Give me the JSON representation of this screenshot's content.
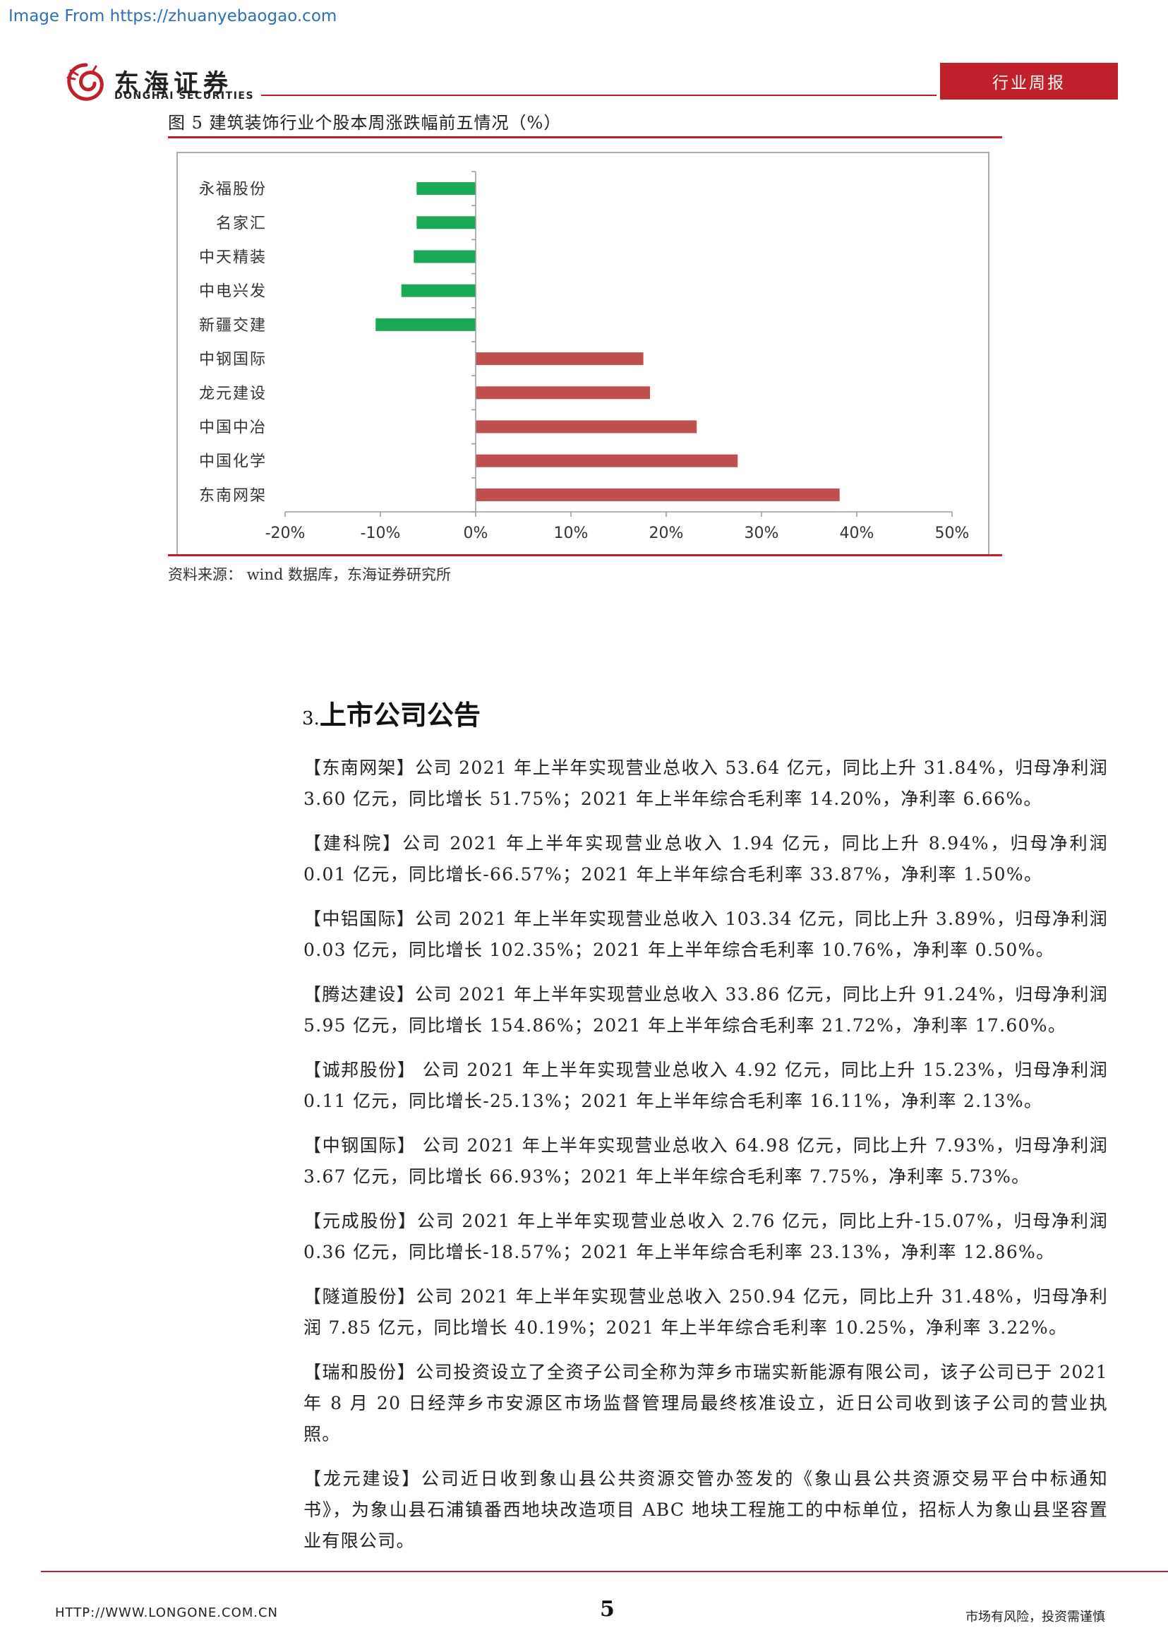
{
  "watermark": "Image From https://zhuanyebaogao.com",
  "header": {
    "logo_cn": "东海证券",
    "logo_en": "DONGHAI SECURITIES",
    "badge": "行业周报",
    "brand_color": "#c0202a"
  },
  "figure": {
    "caption": "图 5   建筑装饰行业个股本周涨跌幅前五情况（%）",
    "source": "资料来源：  wind 数据库，东海证券研究所"
  },
  "chart_data": {
    "type": "bar",
    "orientation": "horizontal",
    "categories": [
      "永福股份",
      "名家汇",
      "中天精装",
      "中电兴发",
      "新疆交建",
      "中钢国际",
      "龙元建设",
      "中国中冶",
      "中国化学",
      "东南网架"
    ],
    "values": [
      -6.2,
      -6.2,
      -6.5,
      -7.8,
      -10.5,
      17.6,
      18.3,
      23.2,
      27.5,
      38.2
    ],
    "xlim": [
      -20,
      50
    ],
    "ticks": [
      "-20%",
      "-10%",
      "0%",
      "10%",
      "20%",
      "30%",
      "40%",
      "50%"
    ],
    "tick_values": [
      -20,
      -10,
      0,
      10,
      20,
      30,
      40,
      50
    ],
    "negative_color": "#1aaa55",
    "positive_color": "#c0504d",
    "title": "",
    "xlabel": "",
    "ylabel": "",
    "grid": false
  },
  "section": {
    "number": "3.",
    "title": "上市公司公告"
  },
  "announcements": [
    "【东南网架】公司 2021 年上半年实现营业总收入 53.64 亿元，同比上升 31.84%，归母净利润 3.60 亿元，同比增长 51.75%；2021 年上半年综合毛利率 14.20%，净利率 6.66%。",
    "【建科院】公司 2021 年上半年实现营业总收入 1.94 亿元，同比上升 8.94%，归母净利润 0.01 亿元，同比增长-66.57%；2021 年上半年综合毛利率 33.87%，净利率 1.50%。",
    "【中铝国际】公司 2021 年上半年实现营业总收入 103.34 亿元，同比上升 3.89%，归母净利润 0.03 亿元，同比增长 102.35%；2021 年上半年综合毛利率 10.76%，净利率 0.50%。",
    "【腾达建设】公司 2021 年上半年实现营业总收入 33.86 亿元，同比上升 91.24%，归母净利润 5.95 亿元，同比增长 154.86%；2021 年上半年综合毛利率 21.72%，净利率 17.60%。",
    "【诚邦股份】 公司 2021 年上半年实现营业总收入 4.92 亿元，同比上升 15.23%，归母净利润 0.11 亿元，同比增长-25.13%；2021 年上半年综合毛利率 16.11%，净利率 2.13%。",
    "【中钢国际】  公司 2021 年上半年实现营业总收入 64.98 亿元，同比上升 7.93%，归母净利润 3.67 亿元，同比增长 66.93%；2021 年上半年综合毛利率 7.75%，净利率 5.73%。",
    "【元成股份】公司 2021 年上半年实现营业总收入 2.76 亿元，同比上升-15.07%，归母净利润 0.36 亿元，同比增长-18.57%；2021 年上半年综合毛利率 23.13%，净利率 12.86%。",
    "【隧道股份】公司 2021 年上半年实现营业总收入 250.94 亿元，同比上升 31.48%，归母净利润 7.85 亿元，同比增长 40.19%；2021 年上半年综合毛利率 10.25%，净利率 3.22%。",
    "【瑞和股份】公司投资设立了全资子公司全称为萍乡市瑞实新能源有限公司，该子公司已于 2021 年 8 月 20 日经萍乡市安源区市场监督管理局最终核准设立，近日公司收到该子公司的营业执照。",
    "【龙元建设】公司近日收到象山县公共资源交管办签发的《象山县公共资源交易平台中标通知书》，为象山县石浦镇番西地块改造项目 ABC 地块工程施工的中标单位，招标人为象山县坚容置业有限公司。"
  ],
  "footer": {
    "url": "HTTP://WWW.LONGONE.COM.CN",
    "page": "5",
    "risk": "市场有风险，投资需谨慎"
  }
}
